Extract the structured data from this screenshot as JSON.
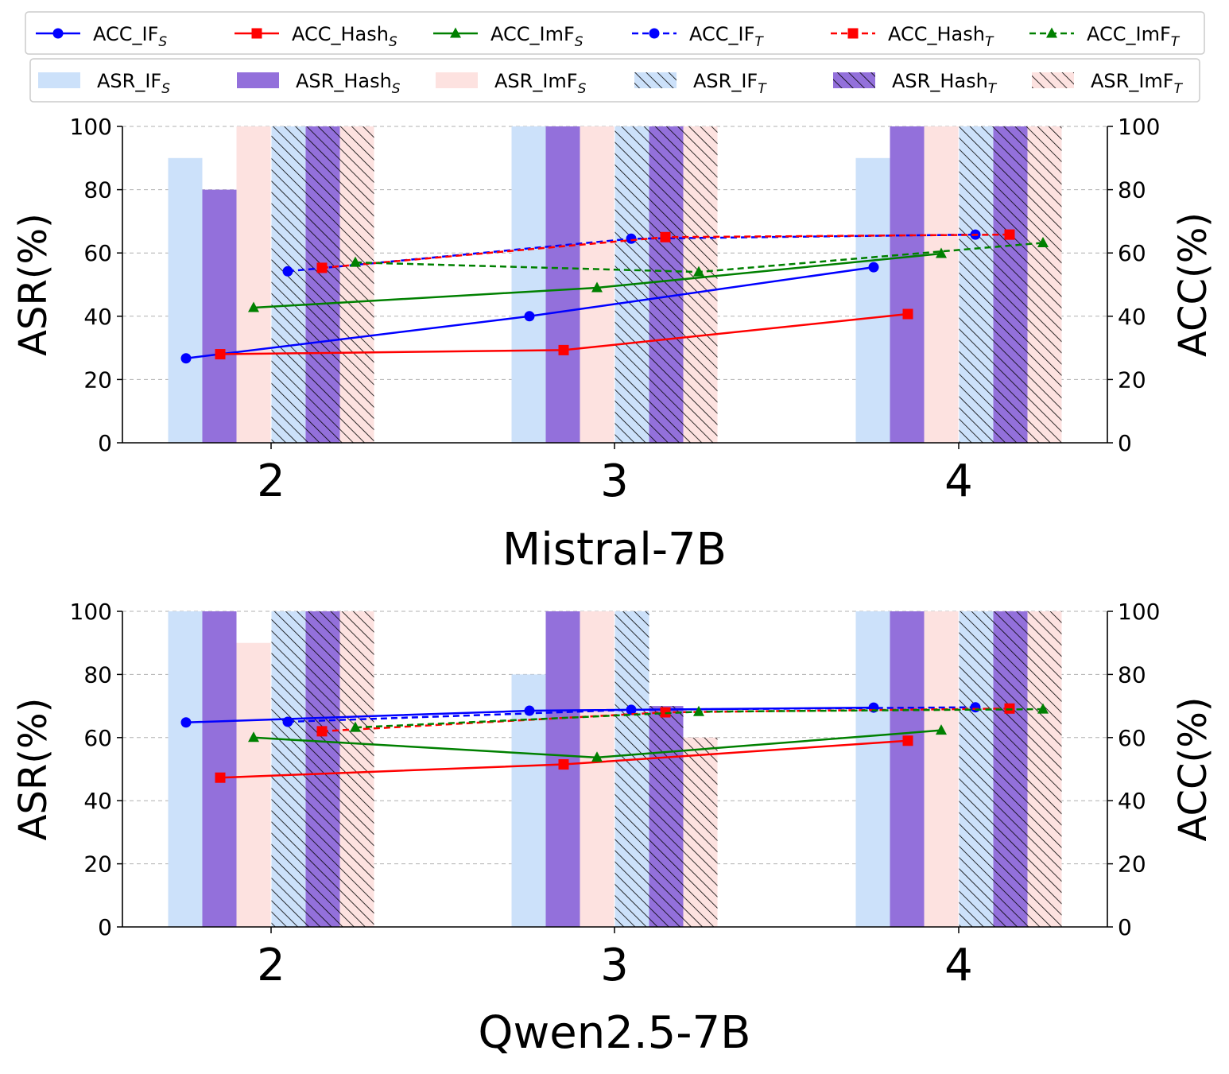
{
  "legend": {
    "acc_row": [
      {
        "base": "ACC_IF",
        "sub": "S",
        "color": "#0000ff",
        "marker": "circle",
        "dash": false
      },
      {
        "base": "ACC_Hash",
        "sub": "S",
        "color": "#ff0000",
        "marker": "square",
        "dash": false
      },
      {
        "base": "ACC_ImF",
        "sub": "S",
        "color": "#008000",
        "marker": "triangle",
        "dash": false
      },
      {
        "base": "ACC_IF",
        "sub": "T",
        "color": "#0000ff",
        "marker": "circle",
        "dash": true
      },
      {
        "base": "ACC_Hash",
        "sub": "T",
        "color": "#ff0000",
        "marker": "square",
        "dash": true
      },
      {
        "base": "ACC_ImF",
        "sub": "T",
        "color": "#008000",
        "marker": "triangle",
        "dash": true
      }
    ],
    "asr_row": [
      {
        "base": "ASR_IF",
        "sub": "S",
        "color": "#cce1fa",
        "hatch": false
      },
      {
        "base": "ASR_Hash",
        "sub": "S",
        "color": "#9370db",
        "hatch": false
      },
      {
        "base": "ASR_ImF",
        "sub": "S",
        "color": "#fde2e0",
        "hatch": false
      },
      {
        "base": "ASR_IF",
        "sub": "T",
        "color": "#cce1fa",
        "hatch": true
      },
      {
        "base": "ASR_Hash",
        "sub": "T",
        "color": "#9370db",
        "hatch": true
      },
      {
        "base": "ASR_ImF",
        "sub": "T",
        "color": "#fde2e0",
        "hatch": true
      }
    ]
  },
  "chart_data": [
    {
      "type": "bar",
      "title": "Mistral-7B",
      "categories": [
        "2",
        "3",
        "4"
      ],
      "ylabel_left": "ASR(%)",
      "ylabel_right": "ACC(%)",
      "ylim": [
        0,
        100
      ],
      "yticks": [
        0,
        20,
        40,
        60,
        80,
        100
      ],
      "grid": "horizontal dashed",
      "bar_series": [
        {
          "name": "ASR_IF_S",
          "values": [
            90,
            100,
            90
          ]
        },
        {
          "name": "ASR_Hash_S",
          "values": [
            80,
            100,
            100
          ]
        },
        {
          "name": "ASR_ImF_S",
          "values": [
            100,
            100,
            100
          ]
        },
        {
          "name": "ASR_IF_T",
          "values": [
            100,
            100,
            100
          ]
        },
        {
          "name": "ASR_Hash_T",
          "values": [
            100,
            100,
            100
          ]
        },
        {
          "name": "ASR_ImF_T",
          "values": [
            100,
            100,
            100
          ]
        }
      ],
      "line_series": [
        {
          "name": "ACC_IF_S",
          "values": [
            26.7,
            40.0,
            55.5
          ]
        },
        {
          "name": "ACC_Hash_S",
          "values": [
            28.0,
            29.3,
            40.7
          ]
        },
        {
          "name": "ACC_ImF_S",
          "values": [
            42.7,
            49.0,
            59.8
          ]
        },
        {
          "name": "ACC_IF_T",
          "values": [
            54.2,
            64.5,
            65.8
          ]
        },
        {
          "name": "ACC_Hash_T",
          "values": [
            55.3,
            65.0,
            65.8
          ]
        },
        {
          "name": "ACC_ImF_T",
          "values": [
            57.0,
            54.0,
            63.2
          ]
        }
      ]
    },
    {
      "type": "bar",
      "title": "Qwen2.5-7B",
      "categories": [
        "2",
        "3",
        "4"
      ],
      "ylabel_left": "ASR(%)",
      "ylabel_right": "ACC(%)",
      "ylim": [
        0,
        100
      ],
      "yticks": [
        0,
        20,
        40,
        60,
        80,
        100
      ],
      "grid": "horizontal dashed",
      "bar_series": [
        {
          "name": "ASR_IF_S",
          "values": [
            100,
            80,
            100
          ]
        },
        {
          "name": "ASR_Hash_S",
          "values": [
            100,
            100,
            100
          ]
        },
        {
          "name": "ASR_ImF_S",
          "values": [
            90,
            100,
            100
          ]
        },
        {
          "name": "ASR_IF_T",
          "values": [
            100,
            100,
            100
          ]
        },
        {
          "name": "ASR_Hash_T",
          "values": [
            100,
            70,
            100
          ]
        },
        {
          "name": "ASR_ImF_T",
          "values": [
            100,
            60,
            100
          ]
        }
      ],
      "line_series": [
        {
          "name": "ACC_IF_S",
          "values": [
            64.8,
            68.5,
            69.5
          ]
        },
        {
          "name": "ACC_Hash_S",
          "values": [
            47.3,
            51.5,
            59.0
          ]
        },
        {
          "name": "ACC_ImF_S",
          "values": [
            60.0,
            53.7,
            62.3
          ]
        },
        {
          "name": "ACC_IF_T",
          "values": [
            65.0,
            68.8,
            69.6
          ]
        },
        {
          "name": "ACC_Hash_T",
          "values": [
            62.0,
            68.0,
            69.2
          ]
        },
        {
          "name": "ACC_ImF_T",
          "values": [
            63.2,
            68.2,
            69.0
          ]
        }
      ]
    }
  ]
}
